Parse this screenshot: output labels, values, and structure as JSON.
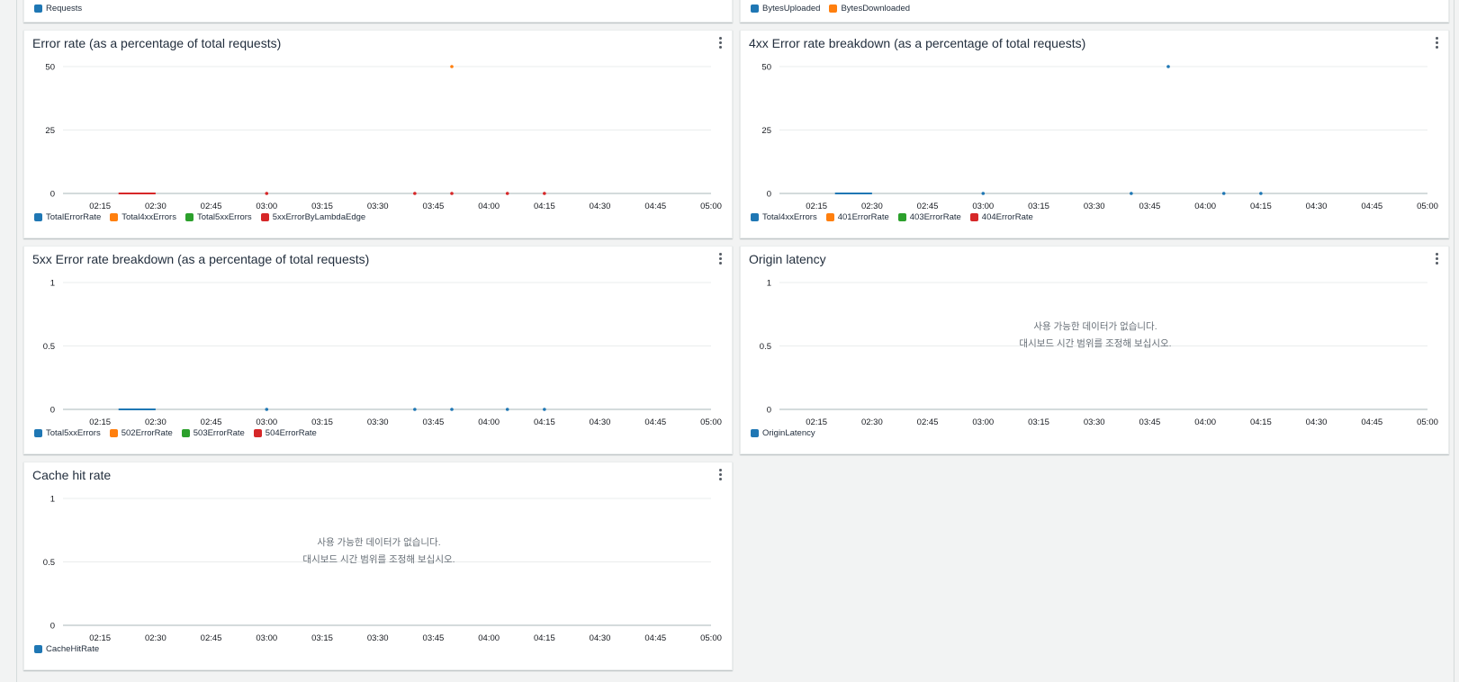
{
  "top_row": {
    "left_legend": [
      {
        "label": "Requests",
        "color": "#1f77b4"
      }
    ],
    "right_legend": [
      {
        "label": "BytesUploaded",
        "color": "#1f77b4"
      },
      {
        "label": "BytesDownloaded",
        "color": "#ff7f0e"
      }
    ]
  },
  "widgets": [
    {
      "id": "error-rate",
      "title": "Error rate (as a percentage of total requests)",
      "legend": [
        {
          "label": "TotalErrorRate",
          "color": "#1f77b4"
        },
        {
          "label": "Total4xxErrors",
          "color": "#ff7f0e"
        },
        {
          "label": "Total5xxErrors",
          "color": "#2ca02c"
        },
        {
          "label": "5xxErrorByLambdaEdge",
          "color": "#d62728"
        }
      ],
      "nodata": null,
      "chart_data": {
        "type": "line",
        "y_ticks": [
          "0",
          "25",
          "50"
        ],
        "ylim": [
          0,
          50
        ],
        "x_ticks": [
          "02:15",
          "02:30",
          "02:45",
          "03:00",
          "03:15",
          "03:30",
          "03:45",
          "04:00",
          "04:15",
          "04:30",
          "04:45",
          "05:00"
        ],
        "series": [
          {
            "color": "#d62728",
            "segments": [
              {
                "x_from": "02:20",
                "x_to": "02:30",
                "y": 0
              }
            ],
            "points": [
              {
                "x": "03:00",
                "y": 0
              },
              {
                "x": "03:40",
                "y": 0
              },
              {
                "x": "03:50",
                "y": 0
              },
              {
                "x": "04:05",
                "y": 0
              },
              {
                "x": "04:15",
                "y": 0
              }
            ]
          },
          {
            "color": "#ff7f0e",
            "points": [
              {
                "x": "03:50",
                "y": 50
              }
            ]
          }
        ]
      }
    },
    {
      "id": "4xx-breakdown",
      "title": "4xx Error rate breakdown (as a percentage of total requests)",
      "legend": [
        {
          "label": "Total4xxErrors",
          "color": "#1f77b4"
        },
        {
          "label": "401ErrorRate",
          "color": "#ff7f0e"
        },
        {
          "label": "403ErrorRate",
          "color": "#2ca02c"
        },
        {
          "label": "404ErrorRate",
          "color": "#d62728"
        }
      ],
      "nodata": null,
      "chart_data": {
        "type": "line",
        "y_ticks": [
          "0",
          "25",
          "50"
        ],
        "ylim": [
          0,
          50
        ],
        "x_ticks": [
          "02:15",
          "02:30",
          "02:45",
          "03:00",
          "03:15",
          "03:30",
          "03:45",
          "04:00",
          "04:15",
          "04:30",
          "04:45",
          "05:00"
        ],
        "series": [
          {
            "color": "#1f77b4",
            "segments": [
              {
                "x_from": "02:20",
                "x_to": "02:30",
                "y": 0
              }
            ],
            "points": [
              {
                "x": "03:00",
                "y": 0
              },
              {
                "x": "03:40",
                "y": 0
              },
              {
                "x": "03:50",
                "y": 50
              },
              {
                "x": "04:05",
                "y": 0
              },
              {
                "x": "04:15",
                "y": 0
              }
            ]
          }
        ]
      }
    },
    {
      "id": "5xx-breakdown",
      "title": "5xx Error rate breakdown (as a percentage of total requests)",
      "legend": [
        {
          "label": "Total5xxErrors",
          "color": "#1f77b4"
        },
        {
          "label": "502ErrorRate",
          "color": "#ff7f0e"
        },
        {
          "label": "503ErrorRate",
          "color": "#2ca02c"
        },
        {
          "label": "504ErrorRate",
          "color": "#d62728"
        }
      ],
      "nodata": null,
      "chart_data": {
        "type": "line",
        "y_ticks": [
          "0",
          "0.5",
          "1"
        ],
        "ylim": [
          0,
          1
        ],
        "x_ticks": [
          "02:15",
          "02:30",
          "02:45",
          "03:00",
          "03:15",
          "03:30",
          "03:45",
          "04:00",
          "04:15",
          "04:30",
          "04:45",
          "05:00"
        ],
        "series": [
          {
            "color": "#1f77b4",
            "segments": [
              {
                "x_from": "02:20",
                "x_to": "02:30",
                "y": 0
              }
            ],
            "points": [
              {
                "x": "03:00",
                "y": 0
              },
              {
                "x": "03:40",
                "y": 0
              },
              {
                "x": "03:50",
                "y": 0
              },
              {
                "x": "04:05",
                "y": 0
              },
              {
                "x": "04:15",
                "y": 0
              }
            ]
          }
        ]
      }
    },
    {
      "id": "origin-latency",
      "title": "Origin latency",
      "legend": [
        {
          "label": "OriginLatency",
          "color": "#1f77b4"
        }
      ],
      "nodata": [
        "사용 가능한 데이터가 없습니다.",
        "대시보드 시간 범위를 조정해 보십시오."
      ],
      "chart_data": {
        "type": "line",
        "y_ticks": [
          "0",
          "0.5",
          "1"
        ],
        "ylim": [
          0,
          1
        ],
        "x_ticks": [
          "02:15",
          "02:30",
          "02:45",
          "03:00",
          "03:15",
          "03:30",
          "03:45",
          "04:00",
          "04:15",
          "04:30",
          "04:45",
          "05:00"
        ],
        "series": []
      }
    },
    {
      "id": "cache-hit-rate",
      "title": "Cache hit rate",
      "legend": [
        {
          "label": "CacheHitRate",
          "color": "#1f77b4"
        }
      ],
      "nodata": [
        "사용 가능한 데이터가 없습니다.",
        "대시보드 시간 범위를 조정해 보십시오."
      ],
      "chart_data": {
        "type": "line",
        "y_ticks": [
          "0",
          "0.5",
          "1"
        ],
        "ylim": [
          0,
          1
        ],
        "x_ticks": [
          "02:15",
          "02:30",
          "02:45",
          "03:00",
          "03:15",
          "03:30",
          "03:45",
          "04:00",
          "04:15",
          "04:30",
          "04:45",
          "05:00"
        ],
        "series": []
      }
    }
  ]
}
